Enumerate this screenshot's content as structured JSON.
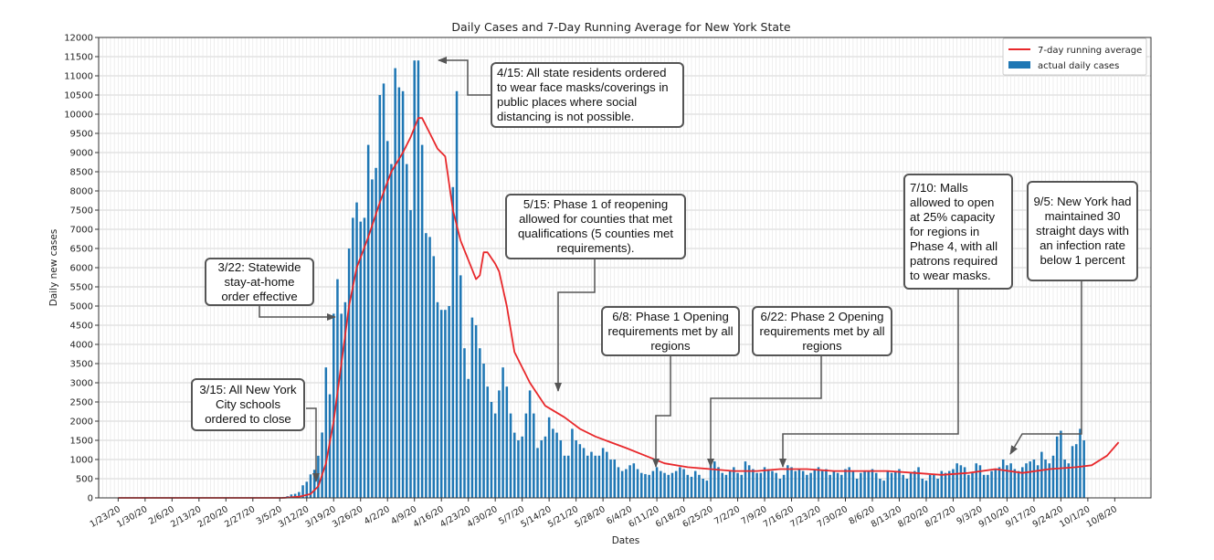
{
  "chart_data": {
    "type": "bar+line",
    "title": "Daily Cases and 7-Day Running Average for New York State",
    "xlabel": "Dates",
    "ylabel": "Daily new cases",
    "ylim": [
      0,
      12000
    ],
    "y_ticks": [
      0,
      500,
      1000,
      1500,
      2000,
      2500,
      3000,
      3500,
      4000,
      4500,
      5000,
      5500,
      6000,
      6500,
      7000,
      7500,
      8000,
      8500,
      9000,
      9500,
      10000,
      10500,
      11000,
      11500,
      12000
    ],
    "x_tick_labels": [
      "1/23/20",
      "1/30/20",
      "2/6/20",
      "2/13/20",
      "2/20/20",
      "2/27/20",
      "3/5/20",
      "3/12/20",
      "3/19/20",
      "3/26/20",
      "4/2/20",
      "4/9/20",
      "4/16/20",
      "4/23/20",
      "4/30/20",
      "5/7/20",
      "5/14/20",
      "5/21/20",
      "5/28/20",
      "6/4/20",
      "6/11/20",
      "6/18/20",
      "6/25/20",
      "7/2/20",
      "7/9/20",
      "7/16/20",
      "7/23/20",
      "7/30/20",
      "8/6/20",
      "8/13/20",
      "8/20/20",
      "8/27/20",
      "9/3/20",
      "9/10/20",
      "9/17/20",
      "9/24/20",
      "10/1/20",
      "10/8/20"
    ],
    "grid": true,
    "legend_position": "top-right",
    "colors": {
      "bars": "#1f77b4",
      "line": "#e8282b"
    },
    "series": [
      {
        "name": "actual daily cases",
        "type": "bar",
        "x_start": "3/1/20",
        "values": [
          1,
          0,
          2,
          8,
          11,
          22,
          44,
          89,
          106,
          152,
          328,
          421,
          612,
          732,
          1098,
          1704,
          3400,
          2700,
          4800,
          5700,
          4800,
          5100,
          6500,
          7300,
          7700,
          7200,
          7300,
          9200,
          8300,
          8600,
          10500,
          10800,
          9300,
          8700,
          11200,
          10700,
          10600,
          8700,
          7500,
          11400,
          11400,
          9200,
          6900,
          6800,
          6300,
          5100,
          4900,
          4900,
          5000,
          8100,
          10600,
          5800,
          3900,
          3100,
          4700,
          4500,
          3900,
          3500,
          2900,
          2500,
          2200,
          2800,
          3400,
          2900,
          2200,
          1700,
          1500,
          1600,
          2200,
          2800,
          2200,
          1300,
          1500,
          1600,
          2100,
          1800,
          1700,
          1500,
          1100,
          1100,
          1800,
          1500,
          1400,
          1300,
          1100,
          1200,
          1100,
          1100,
          1300,
          1200,
          1000,
          1000,
          800,
          700,
          750,
          850,
          900,
          750,
          650,
          620,
          600,
          700,
          800,
          700,
          650,
          600,
          650,
          700,
          800,
          750,
          600,
          550,
          700,
          600,
          500,
          450,
          900,
          950,
          800,
          650,
          600,
          700,
          800,
          650,
          600,
          950,
          850,
          750,
          650,
          650,
          800,
          750,
          700,
          650,
          500,
          600,
          850,
          800,
          700,
          750,
          700,
          600,
          650,
          750,
          800,
          700,
          750,
          600,
          700,
          650,
          600,
          750,
          800,
          700,
          500,
          650,
          700,
          700,
          750,
          650,
          500,
          450,
          700,
          650,
          700,
          750,
          600,
          500,
          650,
          700,
          800,
          500,
          450,
          600,
          600,
          500,
          700,
          650,
          700,
          750,
          900,
          850,
          800,
          600,
          650,
          900,
          850,
          600,
          600,
          700,
          750,
          800,
          1000,
          850,
          900,
          750,
          700,
          800,
          900,
          950,
          1000,
          850,
          1200,
          1000,
          900,
          1100,
          1600,
          1750,
          1000,
          900,
          1350,
          1400,
          1800,
          1500
        ]
      },
      {
        "name": "7-day running average",
        "type": "line",
        "x": [
          "3/1/20",
          "3/6/20",
          "3/10/20",
          "3/13/20",
          "3/15/20",
          "3/17/20",
          "3/19/20",
          "3/21/20",
          "3/23/20",
          "3/25/20",
          "3/28/20",
          "3/31/20",
          "4/3/20",
          "4/6/20",
          "4/8/20",
          "4/10/20",
          "4/11/20",
          "4/13/20",
          "4/15/20",
          "4/17/20",
          "4/19/20",
          "4/21/20",
          "4/23/20",
          "4/25/20",
          "4/26/20",
          "4/27/20",
          "4/28/20",
          "4/30/20",
          "5/1/20",
          "5/3/20",
          "5/5/20",
          "5/9/20",
          "5/13/20",
          "5/18/20",
          "5/22/20",
          "5/26/20",
          "5/30/20",
          "6/3/20",
          "6/8/20",
          "6/13/20",
          "6/19/20",
          "6/25/20",
          "7/1/20",
          "7/7/20",
          "7/13/20",
          "7/20/20",
          "7/27/20",
          "8/3/20",
          "8/10/20",
          "8/17/20",
          "8/24/20",
          "8/31/20",
          "9/7/20",
          "9/14/20",
          "9/21/20",
          "9/28/20",
          "10/2/20",
          "10/6/20",
          "10/9/20"
        ],
        "values": [
          0,
          0,
          30,
          100,
          300,
          900,
          2000,
          3500,
          5000,
          6000,
          6800,
          7700,
          8500,
          9000,
          9400,
          9900,
          9900,
          9500,
          9100,
          8900,
          7500,
          6700,
          6200,
          5700,
          5800,
          6400,
          6400,
          6100,
          5900,
          5000,
          3800,
          3000,
          2400,
          2100,
          1800,
          1600,
          1450,
          1300,
          1100,
          900,
          800,
          750,
          700,
          700,
          750,
          750,
          700,
          700,
          700,
          650,
          600,
          650,
          750,
          650,
          750,
          800,
          850,
          1100,
          1450
        ]
      }
    ],
    "annotations": [
      {
        "date": "3/15/20",
        "text": "3/15: All New York City schools ordered to close"
      },
      {
        "date": "3/22/20",
        "text": "3/22: Statewide stay-at-home order effective"
      },
      {
        "date": "4/15/20",
        "text": "4/15: All state residents ordered to wear face masks/coverings in public places where social distancing is not possible."
      },
      {
        "date": "5/15/20",
        "text": "5/15: Phase 1 of reopening allowed for counties that met qualifications (5 counties met requirements)."
      },
      {
        "date": "6/8/20",
        "text": "6/8: Phase 1 Opening requirements met by all regions"
      },
      {
        "date": "6/22/20",
        "text": "6/22: Phase 2 Opening requirements met by all regions"
      },
      {
        "date": "7/10/20",
        "text": "7/10: Malls allowed to open at 25% capacity for regions in Phase 4, with all patrons required to wear masks."
      },
      {
        "date": "9/5/20",
        "text": "9/5: New York had maintained 30 straight days with an infection rate below 1 percent"
      }
    ]
  }
}
